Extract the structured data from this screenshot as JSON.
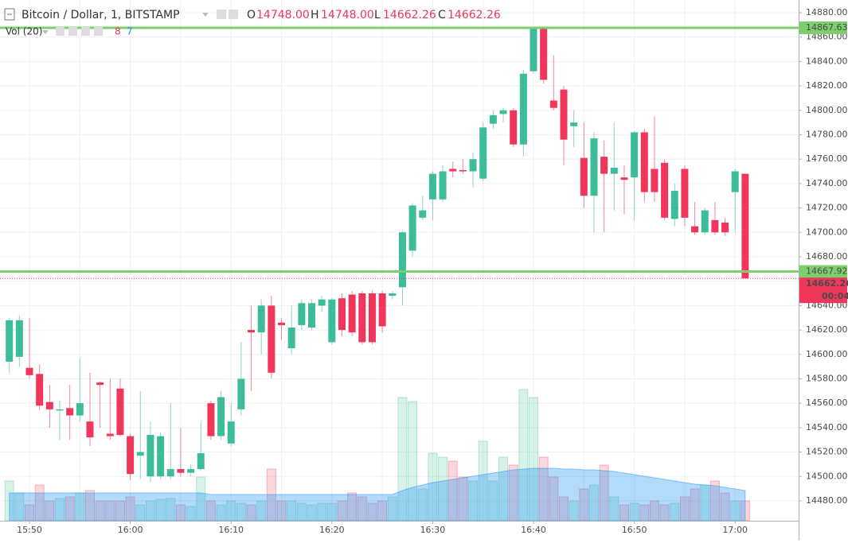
{
  "chart_data": {
    "type": "candlestick",
    "title": "Bitcoin / Dollar, 1, BITSTAMP",
    "legend_values": [
      {
        "name": "O",
        "value": 14748,
        "label": "14748.00"
      },
      {
        "name": "H",
        "value": 14748,
        "label": "14748.00"
      },
      {
        "name": "L",
        "value": 14662.26,
        "label": "14662.26"
      },
      {
        "name": "C",
        "value": 14662.26,
        "label": "14662.26"
      }
    ],
    "indicator": "Vol (20)",
    "indicator_readings": [
      8,
      7
    ],
    "up_color": "#3cbc98",
    "down_color": "#f0365a",
    "ma_color": "#2196f3",
    "categories": [
      null,
      null,
      "15:50",
      null,
      null,
      null,
      null,
      null,
      null,
      null,
      null,
      null,
      "16:00",
      null,
      null,
      null,
      null,
      null,
      null,
      null,
      null,
      null,
      "16:10",
      null,
      null,
      null,
      null,
      null,
      null,
      null,
      null,
      null,
      "16:20",
      null,
      null,
      null,
      null,
      null,
      null,
      null,
      null,
      null,
      "16:30",
      null,
      null,
      null,
      null,
      null,
      null,
      null,
      null,
      null,
      "16:40",
      null,
      null,
      null,
      null,
      null,
      null,
      null,
      null,
      null,
      "16:50",
      null,
      null,
      null,
      null,
      null,
      null,
      null,
      null,
      null,
      "17:00",
      null
    ],
    "open": [
      14594,
      14598,
      14589,
      14584,
      14561,
      14554,
      14556,
      14550,
      14545,
      14577,
      14535,
      14572,
      14533,
      14517,
      14500,
      14500,
      14500,
      14506,
      14503,
      14506,
      14560,
      14533,
      14527,
      14555,
      14620,
      14618,
      14640,
      14626,
      14605,
      14624,
      14622,
      14640,
      14610,
      14646,
      14649,
      14650,
      14650,
      14650,
      14648,
      14655,
      14685,
      14712,
      14727,
      14727,
      14752,
      14751,
      14750,
      14744,
      14789,
      14797,
      14800,
      14772,
      14832,
      14867,
      14808,
      14817,
      14787,
      14761,
      14730,
      14762,
      14748,
      14745,
      14745,
      14782,
      14752,
      14757,
      14711,
      14752,
      14705,
      14700,
      14710,
      14708,
      14733,
      14748
    ],
    "high": [
      14630,
      14632,
      14630,
      14592,
      14575,
      14562,
      14575,
      14597,
      14585,
      14578,
      14580,
      14580,
      14535,
      14570,
      14545,
      14536,
      14560,
      14540,
      14510,
      14545,
      14562,
      14570,
      14560,
      14610,
      14640,
      14645,
      14648,
      14630,
      14640,
      14645,
      14645,
      14648,
      14646,
      14650,
      14652,
      14652,
      14652,
      14652,
      14652,
      14701,
      14724,
      14730,
      14750,
      14755,
      14758,
      14760,
      14765,
      14790,
      14800,
      14802,
      14802,
      14833,
      14868,
      14868,
      14845,
      14820,
      14800,
      14790,
      14782,
      14775,
      14790,
      14755,
      14783,
      14785,
      14795,
      14760,
      14740,
      14755,
      14725,
      14720,
      14725,
      14712,
      14752,
      14748
    ],
    "low": [
      14585,
      14590,
      14580,
      14554,
      14540,
      14530,
      14530,
      14545,
      14525,
      14540,
      14530,
      14533,
      14497,
      14498,
      14495,
      14498,
      14498,
      14500,
      14500,
      14505,
      14530,
      14530,
      14525,
      14550,
      14570,
      14600,
      14580,
      14612,
      14600,
      14620,
      14620,
      14635,
      14608,
      14615,
      14615,
      14608,
      14608,
      14618,
      14645,
      14640,
      14680,
      14710,
      14710,
      14725,
      14745,
      14748,
      14737,
      14742,
      14785,
      14790,
      14770,
      14762,
      14830,
      14822,
      14800,
      14755,
      14770,
      14720,
      14700,
      14700,
      14718,
      14715,
      14710,
      14725,
      14725,
      14710,
      14705,
      14705,
      14698,
      14698,
      14698,
      14697,
      14700,
      14662.26
    ],
    "close": [
      14628,
      14628,
      14583,
      14558,
      14555,
      14555,
      14550,
      14560,
      14532,
      14575,
      14533,
      14534,
      14502,
      14520,
      14534,
      14533,
      14506,
      14503,
      14506,
      14519,
      14533,
      14565,
      14545,
      14580,
      14618,
      14640,
      14585,
      14624,
      14622,
      14642,
      14642,
      14645,
      14645,
      14620,
      14618,
      14610,
      14610,
      14623,
      14650,
      14700,
      14722,
      14718,
      14748,
      14750,
      14750,
      14750,
      14760,
      14786,
      14796,
      14800,
      14772,
      14830,
      14867,
      14825,
      14802,
      14776,
      14790,
      14730,
      14777,
      14748,
      14753,
      14743,
      14782,
      14733,
      14733,
      14712,
      14734,
      14712,
      14700,
      14718,
      14700,
      14700,
      14750,
      14662.26
    ],
    "volume": [
      50,
      35,
      20,
      45,
      25,
      28,
      30,
      35,
      38,
      25,
      25,
      25,
      30,
      20,
      25,
      27,
      28,
      20,
      18,
      55,
      25,
      20,
      25,
      22,
      20,
      25,
      65,
      25,
      25,
      22,
      20,
      22,
      22,
      25,
      35,
      30,
      22,
      25,
      30,
      155,
      150,
      40,
      85,
      80,
      75,
      55,
      50,
      100,
      50,
      80,
      70,
      165,
      155,
      80,
      55,
      30,
      25,
      40,
      45,
      70,
      30,
      20,
      22,
      20,
      25,
      20,
      22,
      30,
      40,
      45,
      50,
      35,
      25,
      25
    ],
    "volume_ma": [
      35,
      35,
      35,
      35,
      35,
      35,
      35,
      35,
      35,
      35,
      35,
      35,
      35,
      35,
      35,
      35,
      35,
      35,
      35,
      35,
      33,
      33,
      33,
      33,
      33,
      33,
      33,
      33,
      33,
      33,
      33,
      33,
      33,
      33,
      33,
      33,
      33,
      33,
      33,
      38,
      42,
      45,
      48,
      50,
      52,
      54,
      56,
      58,
      60,
      62,
      64,
      65,
      66,
      66,
      66,
      65,
      65,
      64,
      64,
      63,
      62,
      60,
      58,
      56,
      54,
      52,
      50,
      48,
      46,
      45,
      44,
      42,
      40,
      38
    ],
    "volume_ylim": [
      0,
      220
    ],
    "ylim": [
      14463.7,
      14890.4
    ],
    "yticks": [
      {
        "value": 14480,
        "label": "14480.00"
      },
      {
        "value": 14500,
        "label": "14500.00"
      },
      {
        "value": 14520,
        "label": "14520.00"
      },
      {
        "value": 14540,
        "label": "14540.00"
      },
      {
        "value": 14560,
        "label": "14560.00"
      },
      {
        "value": 14580,
        "label": "14580.00"
      },
      {
        "value": 14600,
        "label": "14600.00"
      },
      {
        "value": 14620,
        "label": "14620.00"
      },
      {
        "value": 14640,
        "label": "14640.00"
      },
      {
        "value": 14660,
        "label": "14660.00"
      },
      {
        "value": 14680,
        "label": "14680.00"
      },
      {
        "value": 14700,
        "label": "14700.00"
      },
      {
        "value": 14720,
        "label": "14720.00"
      },
      {
        "value": 14740,
        "label": "14740.00"
      },
      {
        "value": 14760,
        "label": "14760.00"
      },
      {
        "value": 14780,
        "label": "14780.00"
      },
      {
        "value": 14800,
        "label": "14800.00"
      },
      {
        "value": 14820,
        "label": "14820.00"
      },
      {
        "value": 14840,
        "label": "14840.00"
      },
      {
        "value": 14860,
        "label": "14860.00"
      },
      {
        "value": 14880,
        "label": "14880.00"
      }
    ],
    "grid": true,
    "hlines": [
      {
        "value": 14867.63,
        "color": "#7dcf6c"
      },
      {
        "value": 14667.92,
        "color": "#7dcf6c"
      }
    ],
    "last_price": 14662.26,
    "countdown": "00:04"
  }
}
